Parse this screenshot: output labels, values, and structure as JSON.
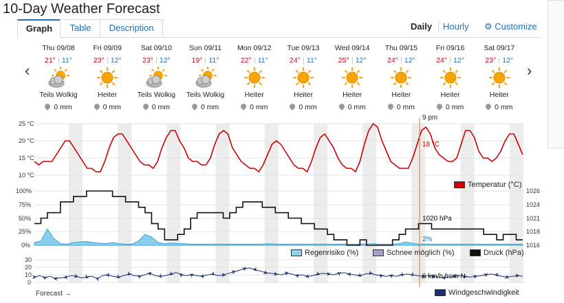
{
  "page": {
    "title": "10-Day Weather Forecast"
  },
  "tabs": [
    {
      "label": "Graph",
      "active": true
    },
    {
      "label": "Table",
      "active": false
    },
    {
      "label": "Description",
      "active": false
    }
  ],
  "toggle": {
    "daily": "Daily",
    "hourly": "Hourly"
  },
  "customize": {
    "label": "Customize",
    "icon": "gear-icon"
  },
  "nav": {
    "prev": "‹",
    "next": "›"
  },
  "days": [
    {
      "name": "Thu 09/08",
      "hi": "21°",
      "lo": "11°",
      "cond": "Teils Wolkig",
      "icon": "partly-cloudy",
      "precip": "0 mm"
    },
    {
      "name": "Fri 09/09",
      "hi": "23°",
      "lo": "12°",
      "cond": "Heiter",
      "icon": "sun",
      "precip": "0 mm"
    },
    {
      "name": "Sat 09/10",
      "hi": "23°",
      "lo": "12°",
      "cond": "Teils Wolkig",
      "icon": "partly-cloudy",
      "precip": "0 mm"
    },
    {
      "name": "Sun 09/11",
      "hi": "19°",
      "lo": "11°",
      "cond": "Teils Wolkig",
      "icon": "partly-cloudy",
      "precip": "0 mm"
    },
    {
      "name": "Mon 09/12",
      "hi": "22°",
      "lo": "11°",
      "cond": "Heiter",
      "icon": "sun",
      "precip": "0 mm"
    },
    {
      "name": "Tue 09/13",
      "hi": "24°",
      "lo": "11°",
      "cond": "Heiter",
      "icon": "sun",
      "precip": "0 mm"
    },
    {
      "name": "Wed 09/14",
      "hi": "25°",
      "lo": "12°",
      "cond": "Heiter",
      "icon": "sun",
      "precip": "0 mm"
    },
    {
      "name": "Thu 09/15",
      "hi": "24°",
      "lo": "12°",
      "cond": "Heiter",
      "icon": "sun",
      "precip": "0 mm"
    },
    {
      "name": "Fri 09/16",
      "hi": "24°",
      "lo": "12°",
      "cond": "Heiter",
      "icon": "sun",
      "precip": "0 mm"
    },
    {
      "name": "Sat 09/17",
      "hi": "23°",
      "lo": "12°",
      "cond": "Heiter",
      "icon": "sun",
      "precip": "0 mm"
    }
  ],
  "readouts": {
    "time": "9 pm",
    "temperature": "18 °C",
    "pressure": "1020 hPa",
    "rain": "2%",
    "wind": "6 km/h from N"
  },
  "legends": {
    "temperature": "Temperatur (°C)",
    "rain": "Regenrisiko (%)",
    "snow": "Schnee möglich (%)",
    "pressure": "Druck (hPa)",
    "wind": "Windgeschwindigkeit"
  },
  "forecast_label": "Forecast →",
  "colors": {
    "temperature": "#cc0000",
    "rain": "#8fd3ee",
    "pressure": "#111111",
    "wind": "#1a2f6e",
    "accent": "#1f6fb4",
    "cursor": "#e07020",
    "snow": "#a89ccc"
  },
  "chart_data": [
    {
      "type": "line",
      "series": [
        {
          "name": "Temperatur (°C)",
          "values": [
            14,
            13,
            14,
            14,
            14,
            16,
            18,
            20,
            20,
            18,
            16,
            14,
            12,
            12,
            11,
            11,
            14,
            18,
            21,
            22,
            22,
            20,
            18,
            16,
            14,
            13,
            13,
            12,
            14,
            18,
            21,
            23,
            23,
            20,
            18,
            15,
            14,
            14,
            13,
            13,
            15,
            19,
            22,
            23,
            22,
            18,
            16,
            14,
            13,
            12,
            12,
            11,
            13,
            16,
            19,
            20,
            19,
            17,
            15,
            13,
            12,
            12,
            11,
            14,
            18,
            21,
            22,
            20,
            18,
            15,
            13,
            12,
            12,
            11,
            14,
            19,
            23,
            25,
            24,
            20,
            17,
            14,
            13,
            12,
            12,
            12,
            15,
            19,
            23,
            24,
            22,
            18,
            16,
            15,
            14,
            14,
            15,
            19,
            23,
            23,
            21,
            17,
            15,
            15,
            14,
            15,
            17,
            20,
            22,
            22,
            19,
            16
          ]
        }
      ],
      "ylim": [
        10,
        25
      ],
      "yticks": [
        "10 °C",
        "15 °C",
        "20 °C",
        "25 °C"
      ]
    },
    {
      "type": "line",
      "series": [
        {
          "name": "Druck (hPa)",
          "values": [
            1020,
            1021,
            1022,
            1022,
            1024,
            1024,
            1025,
            1025,
            1026,
            1026,
            1026,
            1026,
            1025,
            1025,
            1024,
            1024,
            1023,
            1022,
            1020,
            1019,
            1017,
            1017,
            1018,
            1019,
            1021,
            1022,
            1022,
            1022,
            1022,
            1021,
            1022,
            1023,
            1024,
            1024,
            1024,
            1023,
            1023,
            1022,
            1022,
            1021,
            1021,
            1020,
            1020,
            1019,
            1019,
            1018,
            1017,
            1017,
            1016,
            1016,
            1017,
            1016,
            1016,
            1016,
            1016,
            1017,
            1018,
            1019,
            1019,
            1020,
            1020,
            1019,
            1019,
            1019,
            1019,
            1019,
            1019,
            1019,
            1019,
            1018,
            1018,
            1017,
            1018,
            1018,
            1017,
            1017
          ]
        },
        {
          "name": "Regenrisiko (%)",
          "values": [
            5,
            8,
            30,
            12,
            3,
            2,
            5,
            6,
            7,
            5,
            4,
            3,
            5,
            3,
            2,
            2,
            8,
            20,
            15,
            5,
            3,
            4,
            3,
            3,
            2,
            2,
            2,
            2,
            2,
            2,
            2,
            2,
            2,
            2,
            2,
            2,
            3,
            2,
            2,
            2,
            2,
            2,
            2,
            2,
            2,
            2,
            2,
            2,
            2,
            2,
            2,
            2,
            3,
            2,
            2,
            2,
            3,
            6,
            4,
            2,
            2,
            2,
            2,
            2,
            2,
            2,
            2,
            2,
            2,
            2,
            2,
            2,
            2,
            2,
            2,
            2
          ]
        }
      ],
      "yticks_left": [
        "0%",
        "25%",
        "50%",
        "75%",
        "100%"
      ],
      "yticks_right": [
        "1016",
        "1018",
        "1021",
        "1024",
        "1026"
      ]
    },
    {
      "type": "line",
      "series": [
        {
          "name": "Windgeschwindigkeit",
          "values": [
            7,
            9,
            6,
            8,
            5,
            6,
            7,
            9,
            8,
            6,
            7,
            8,
            5,
            9,
            10,
            8,
            7,
            9,
            11,
            9,
            8,
            10,
            12,
            9,
            8,
            9,
            11,
            13,
            10,
            9,
            10,
            9,
            8,
            10,
            11,
            9,
            10,
            12,
            14,
            16,
            18,
            19,
            17,
            15,
            13,
            12,
            11,
            10,
            12,
            11,
            9,
            10,
            8,
            9,
            11,
            12,
            11,
            10,
            12,
            13,
            11,
            10,
            9,
            11,
            12,
            10,
            9,
            8,
            9,
            8,
            10,
            11,
            10,
            9,
            8,
            9,
            8,
            7,
            6,
            7,
            8,
            9,
            8,
            7,
            8,
            9,
            10,
            11,
            10,
            8,
            7,
            8,
            9,
            8
          ]
        }
      ],
      "ylim": [
        0,
        30
      ],
      "yticks": [
        "0",
        "10",
        "20",
        "30"
      ]
    }
  ]
}
